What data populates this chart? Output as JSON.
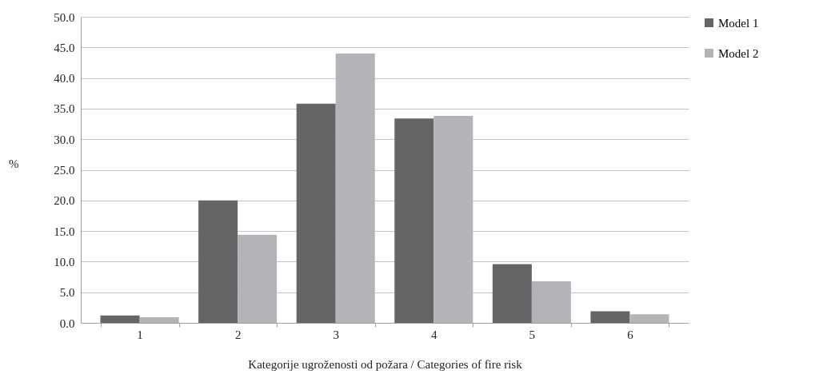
{
  "chart_data": {
    "type": "bar",
    "xlabel": "Kategorije ugroženosti od požara / Categories of fire risk",
    "ylabel": "%",
    "categories": [
      "1",
      "2",
      "3",
      "4",
      "5",
      "6"
    ],
    "series": [
      {
        "name": "Model 1",
        "color": "#656567",
        "values": [
          1.2,
          20.0,
          35.8,
          33.4,
          9.6,
          1.9
        ]
      },
      {
        "name": "Model 2",
        "color": "#b3b4b7",
        "values": [
          0.9,
          14.4,
          44.0,
          33.8,
          6.8,
          1.4
        ]
      }
    ],
    "ylim": [
      0,
      50
    ],
    "yticks": [
      {
        "value": 0,
        "label": "0.0"
      },
      {
        "value": 5,
        "label": "5.0"
      },
      {
        "value": 10,
        "label": "10.0"
      },
      {
        "value": 15,
        "label": "15.0"
      },
      {
        "value": 20,
        "label": "20.0"
      },
      {
        "value": 25,
        "label": "25.0"
      },
      {
        "value": 30,
        "label": "30.0"
      },
      {
        "value": 35,
        "label": "35.0"
      },
      {
        "value": 40,
        "label": "40.0"
      },
      {
        "value": 45,
        "label": "45.0"
      },
      {
        "value": 50,
        "label": "50.0"
      }
    ],
    "grid": "y",
    "legend": "right"
  }
}
